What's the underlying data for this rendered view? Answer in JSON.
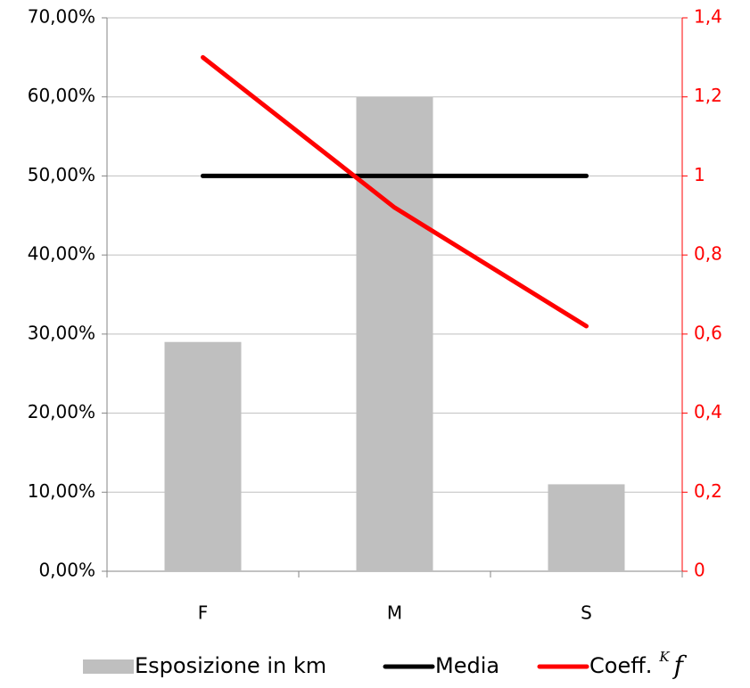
{
  "chart_data": {
    "type": "bar",
    "categories": [
      "F",
      "M",
      "S"
    ],
    "series": [
      {
        "name": "Esposizione in km",
        "type": "bar",
        "color": "#bfbfbf",
        "values": [
          29,
          60,
          11
        ]
      },
      {
        "name": "Media",
        "type": "line",
        "axis": "y2",
        "color": "#000000",
        "values": [
          1,
          1,
          1
        ]
      },
      {
        "name": "Coeff.",
        "name_superscript": "K",
        "name_italic": "f",
        "type": "line",
        "axis": "y2",
        "color": "#ff0000",
        "values": [
          1.3,
          0.92,
          0.62
        ]
      }
    ],
    "ylim": [
      0,
      70
    ],
    "yticks": [
      {
        "value": 0,
        "label": "0,00%"
      },
      {
        "value": 10,
        "label": "10,00%"
      },
      {
        "value": 20,
        "label": "20,00%"
      },
      {
        "value": 30,
        "label": "30,00%"
      },
      {
        "value": 40,
        "label": "40,00%"
      },
      {
        "value": 50,
        "label": "50,00%"
      },
      {
        "value": 60,
        "label": "60,00%"
      },
      {
        "value": 70,
        "label": "70,00%"
      }
    ],
    "y2lim": [
      0,
      1.4
    ],
    "y2ticks": [
      0,
      {
        "value": 0.2,
        "label": "0,2"
      },
      {
        "value": 0.4,
        "label": "0,4"
      },
      {
        "value": 0.6,
        "label": "0,6"
      },
      {
        "value": 0.8,
        "label": "0,8"
      },
      1,
      {
        "value": 1.2,
        "label": "1,2"
      },
      {
        "value": 1.4,
        "label": "1,4"
      }
    ],
    "y2color": "#ff0000",
    "grid": true,
    "legend": "bottom"
  }
}
